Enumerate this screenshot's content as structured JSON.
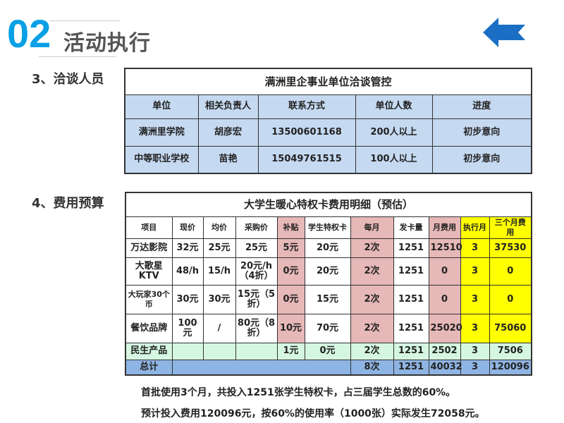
{
  "header": {
    "number": "02",
    "title": "活动执行",
    "back_icon": "arrow-left-icon",
    "accent": "#0aa0e6"
  },
  "section3": {
    "label": "3、洽谈人员",
    "table": {
      "title": "满洲里企事业单位洽谈管控",
      "columns": [
        "单位",
        "相关负责人",
        "联系方式",
        "单位人数",
        "进度"
      ],
      "rows": [
        [
          "满洲里学院",
          "胡彦宏",
          "13500601168",
          "200人以上",
          "初步意向"
        ],
        [
          "中等职业学校",
          "苗艳",
          "15049761515",
          "100人以上",
          "初步意向"
        ]
      ]
    }
  },
  "section4": {
    "label": "4、费用预算",
    "table": {
      "title": "大学生暖心特权卡费用明细（预估）",
      "columns": [
        "项目",
        "现价",
        "均价",
        "采购价",
        "补贴",
        "学生特权卡",
        "每月",
        "发卡量",
        "月费用",
        "执行月",
        "三个月费用"
      ],
      "rows": [
        [
          "万达影院",
          "32元",
          "25元",
          "25元",
          "5元",
          "20元",
          "2次",
          "1251",
          "12510",
          "3",
          "37530"
        ],
        [
          "大歌星KTV",
          "48/h",
          "15/h",
          "20元/h（4折）",
          "0元",
          "20元",
          "2次",
          "1251",
          "0",
          "3",
          "0"
        ],
        [
          "大玩家30个币",
          "30元",
          "30元",
          "15元（5折）",
          "0元",
          "15元",
          "2次",
          "1251",
          "0",
          "3",
          "0"
        ],
        [
          "餐饮品牌",
          "100元",
          "/",
          "80元（8折）",
          "10元",
          "70元",
          "2次",
          "1251",
          "25020",
          "3",
          "75060"
        ],
        [
          "民生产品",
          "",
          "",
          "",
          "1元",
          "0元",
          "2次",
          "1251",
          "2502",
          "3",
          "7506"
        ]
      ],
      "total": {
        "label": "总计",
        "times": "8次",
        "cards": "1251",
        "monthly": "40032",
        "months": "3",
        "three_month": "120096"
      }
    },
    "colors": {
      "pink": "#e6b8b7",
      "yellow": "#ffff00",
      "green": "#d5f7e1",
      "blue": "#8eb4e3",
      "light_blue": "#c5d9f1"
    }
  },
  "notes": [
    "首批使用3个月，共投入1251张学生特权卡，占三届学生总数的60%。",
    "预计投入费用120096元，按60%的使用率（1000张）实际发生72058元。"
  ]
}
